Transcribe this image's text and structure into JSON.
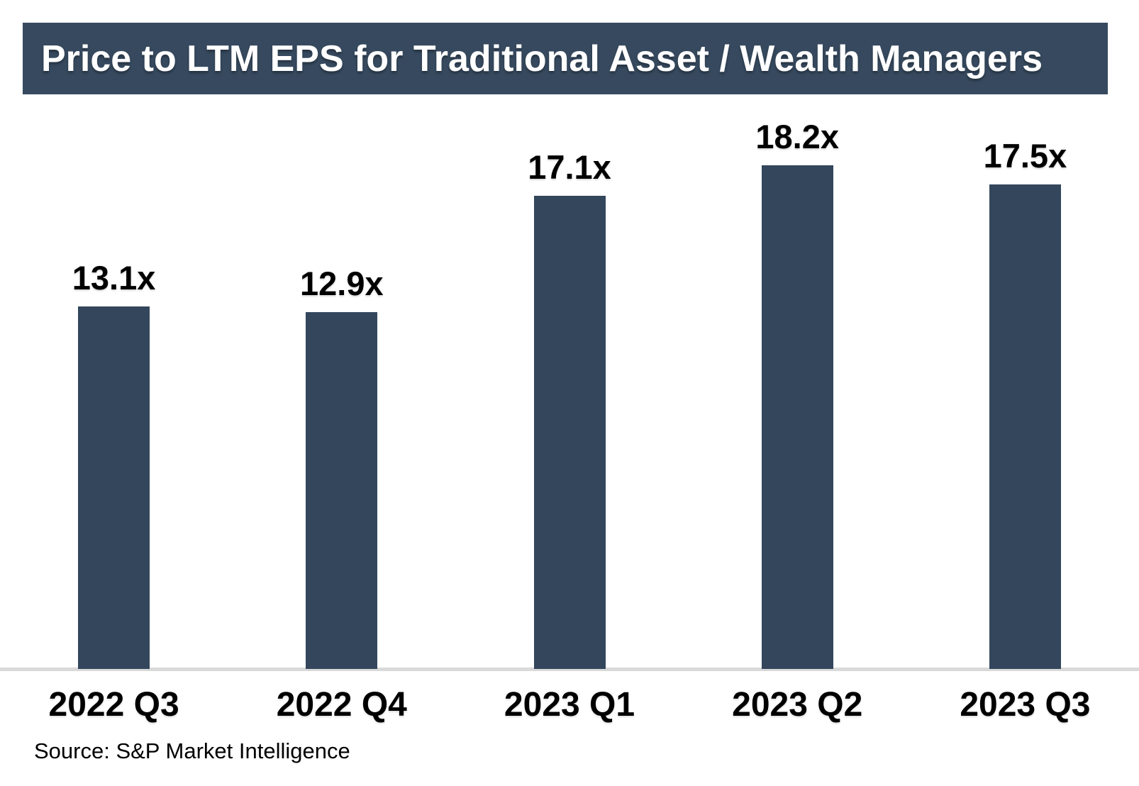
{
  "title": "Price to LTM EPS for Traditional Asset / Wealth Managers",
  "source": "Source: S&P Market Intelligence",
  "colors": {
    "banner_bg": "#36495E",
    "banner_text": "#FFFFFF",
    "bar": "#33465C",
    "axis_line": "#D9D9D9",
    "label_text": "#000000",
    "page_bg": "#FFFFFF"
  },
  "chart_data": {
    "type": "bar",
    "title": "Price to LTM EPS for Traditional Asset / Wealth Managers",
    "categories": [
      "2022 Q3",
      "2022 Q4",
      "2023 Q1",
      "2023 Q2",
      "2023 Q3"
    ],
    "values": [
      13.1,
      12.9,
      17.1,
      18.2,
      17.5
    ],
    "data_labels": [
      "13.1x",
      "12.9x",
      "17.1x",
      "18.2x",
      "17.5x"
    ],
    "unit_suffix": "x",
    "xlabel": "",
    "ylabel": "",
    "ylim": [
      0,
      18.2
    ],
    "grid": false,
    "legend": false,
    "bar_color": "#33465C",
    "baseline_axis": "x"
  }
}
